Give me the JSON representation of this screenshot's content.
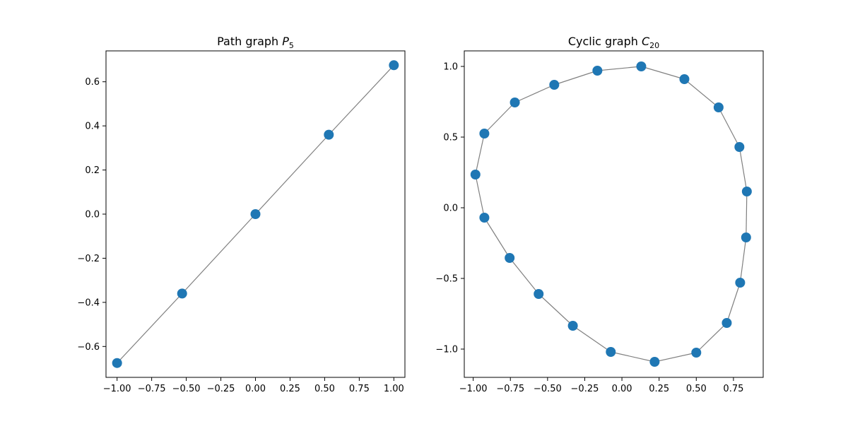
{
  "chart_data": [
    {
      "type": "scatter",
      "title": "Path graph",
      "title_sub": {
        "base": "P",
        "sub": "5"
      },
      "xlim": [
        -1.08,
        1.08
      ],
      "ylim": [
        -0.74,
        0.74
      ],
      "xticks": [
        -1.0,
        -0.75,
        -0.5,
        -0.25,
        0.0,
        0.25,
        0.5,
        0.75,
        1.0
      ],
      "xtick_labels": [
        "−1.00",
        "−0.75",
        "−0.50",
        "−0.25",
        "0.00",
        "0.25",
        "0.50",
        "0.75",
        "1.00"
      ],
      "yticks": [
        -0.6,
        -0.4,
        -0.2,
        0.0,
        0.2,
        0.4,
        0.6
      ],
      "ytick_labels": [
        "−0.6",
        "−0.4",
        "−0.2",
        "0.0",
        "0.2",
        "0.4",
        "0.6"
      ],
      "nodes": [
        {
          "x": -1.0,
          "y": -0.675
        },
        {
          "x": -0.53,
          "y": -0.36
        },
        {
          "x": 0.0,
          "y": 0.0
        },
        {
          "x": 0.53,
          "y": 0.36
        },
        {
          "x": 1.0,
          "y": 0.675
        }
      ],
      "edges": [
        [
          0,
          1
        ],
        [
          1,
          2
        ],
        [
          2,
          3
        ],
        [
          3,
          4
        ]
      ],
      "node_color": "#1f77b4",
      "edge_color": "#808080"
    },
    {
      "type": "scatter",
      "title": "Cyclic graph",
      "title_sub": {
        "base": "C",
        "sub": "20"
      },
      "xlim": [
        -1.06,
        0.95
      ],
      "ylim": [
        -1.2,
        1.11
      ],
      "xticks": [
        -1.0,
        -0.75,
        -0.5,
        -0.25,
        0.0,
        0.25,
        0.5,
        0.75
      ],
      "xtick_labels": [
        "−1.00",
        "−0.75",
        "−0.50",
        "−0.25",
        "0.00",
        "0.25",
        "0.50",
        "0.75"
      ],
      "yticks": [
        -1.0,
        -0.5,
        0.0,
        0.5,
        1.0
      ],
      "ytick_labels": [
        "−1.0",
        "−0.5",
        "0.0",
        "0.5",
        "1.0"
      ],
      "nodes": [
        {
          "x": 0.13,
          "y": 1.0
        },
        {
          "x": 0.42,
          "y": 0.91
        },
        {
          "x": 0.65,
          "y": 0.71
        },
        {
          "x": 0.79,
          "y": 0.43
        },
        {
          "x": 0.84,
          "y": 0.115
        },
        {
          "x": 0.835,
          "y": -0.21
        },
        {
          "x": 0.795,
          "y": -0.53
        },
        {
          "x": 0.705,
          "y": -0.815
        },
        {
          "x": 0.5,
          "y": -1.025
        },
        {
          "x": 0.22,
          "y": -1.09
        },
        {
          "x": -0.075,
          "y": -1.02
        },
        {
          "x": -0.33,
          "y": -0.835
        },
        {
          "x": -0.56,
          "y": -0.61
        },
        {
          "x": -0.755,
          "y": -0.355
        },
        {
          "x": -0.925,
          "y": -0.07
        },
        {
          "x": -0.985,
          "y": 0.235
        },
        {
          "x": -0.925,
          "y": 0.525
        },
        {
          "x": -0.72,
          "y": 0.745
        },
        {
          "x": -0.455,
          "y": 0.87
        },
        {
          "x": -0.165,
          "y": 0.97
        }
      ],
      "edges": [
        [
          0,
          1
        ],
        [
          1,
          2
        ],
        [
          2,
          3
        ],
        [
          3,
          4
        ],
        [
          4,
          5
        ],
        [
          5,
          6
        ],
        [
          6,
          7
        ],
        [
          7,
          8
        ],
        [
          8,
          9
        ],
        [
          9,
          10
        ],
        [
          10,
          11
        ],
        [
          11,
          12
        ],
        [
          12,
          13
        ],
        [
          13,
          14
        ],
        [
          14,
          15
        ],
        [
          15,
          16
        ],
        [
          16,
          17
        ],
        [
          17,
          18
        ],
        [
          18,
          19
        ],
        [
          19,
          0
        ]
      ],
      "node_color": "#1f77b4",
      "edge_color": "#808080"
    }
  ]
}
